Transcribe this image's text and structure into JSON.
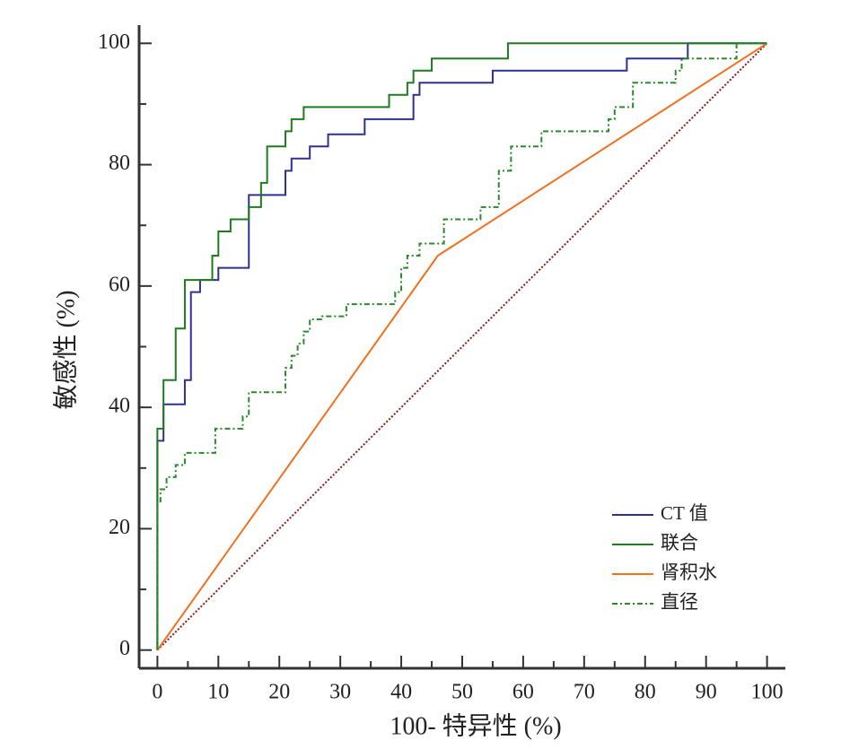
{
  "chart_data": {
    "type": "line",
    "x_label": "100- 特异性 (%)",
    "y_label": "敏感性 (%)",
    "xlim": [
      -3,
      103
    ],
    "ylim": [
      -3,
      103
    ],
    "xticks": [
      0,
      10,
      20,
      30,
      40,
      50,
      60,
      70,
      80,
      90,
      100
    ],
    "yticks": [
      0,
      20,
      40,
      60,
      80,
      100
    ],
    "xminorticks": [
      5,
      15,
      25,
      35,
      45,
      55,
      65,
      75,
      85,
      95
    ],
    "yminorticks": [
      10,
      30,
      50,
      70,
      90
    ],
    "reference_line": {
      "color": "#8b1a1a",
      "x": [
        0,
        100
      ],
      "values": [
        0,
        100
      ]
    },
    "series": [
      {
        "name": "CT 值",
        "color": "#2e3192",
        "style": "solid",
        "x": [
          0,
          0,
          1,
          1,
          4.5,
          4.5,
          5.5,
          5.5,
          7,
          7,
          10,
          10,
          15,
          15,
          21,
          21,
          22,
          22,
          25,
          25,
          28,
          28,
          34,
          34,
          42,
          42,
          43,
          43,
          55,
          55,
          77,
          77,
          87,
          87,
          100
        ],
        "values": [
          0,
          34.5,
          34.5,
          40.5,
          40.5,
          44.5,
          44.5,
          59,
          59,
          61,
          61,
          63,
          63,
          75,
          75,
          79,
          79,
          81,
          81,
          83,
          83,
          85,
          85,
          87.5,
          87.5,
          91.5,
          91.5,
          93.5,
          93.5,
          95.5,
          95.5,
          97.5,
          97.5,
          100,
          100
        ]
      },
      {
        "name": "联合",
        "color": "#1e7b1e",
        "style": "solid",
        "x": [
          0,
          0,
          1,
          1,
          3,
          3,
          4.5,
          4.5,
          9,
          9,
          10,
          10,
          12,
          12,
          15,
          15,
          17,
          17,
          18,
          18,
          21,
          21,
          22,
          22,
          24,
          24,
          38,
          38,
          41,
          41,
          42,
          42,
          45,
          45,
          57.5,
          57.5,
          100
        ],
        "values": [
          0,
          36.5,
          36.5,
          44.5,
          44.5,
          53,
          53,
          61,
          61,
          65,
          65,
          69,
          69,
          71,
          71,
          73,
          73,
          77,
          77,
          83,
          83,
          85.5,
          85.5,
          87.5,
          87.5,
          89.5,
          89.5,
          91.5,
          91.5,
          93.5,
          93.5,
          95.5,
          95.5,
          97.5,
          97.5,
          100,
          100
        ]
      },
      {
        "name": "肾积水",
        "color": "#f07020",
        "style": "solid",
        "x": [
          0,
          46,
          100
        ],
        "values": [
          0,
          65,
          100
        ]
      },
      {
        "name": "直径",
        "color": "#2a8a2a",
        "style": "dashdot",
        "x": [
          0,
          0,
          0.5,
          0.5,
          1.5,
          1.5,
          3,
          3,
          4.5,
          4.5,
          9.5,
          9.5,
          14,
          14,
          15,
          15,
          21,
          21,
          22,
          22,
          23,
          23,
          24,
          24,
          25,
          25,
          27,
          27,
          31,
          31,
          39,
          39,
          40,
          40,
          41,
          41,
          43,
          43,
          47,
          47,
          53,
          53,
          56,
          56,
          58,
          58,
          63,
          63,
          74,
          74,
          75,
          75,
          78,
          78,
          85,
          85,
          86,
          86,
          95,
          95,
          100
        ],
        "values": [
          0,
          24.5,
          24.5,
          26.5,
          26.5,
          28.5,
          28.5,
          30.5,
          30.5,
          32.5,
          32.5,
          36.5,
          36.5,
          38.5,
          38.5,
          42.5,
          42.5,
          46.5,
          46.5,
          48.5,
          48.5,
          50.5,
          50.5,
          52.5,
          52.5,
          54.5,
          54.5,
          55,
          55,
          57,
          57,
          59,
          59,
          63,
          63,
          65,
          65,
          67,
          67,
          71,
          71,
          73,
          73,
          79,
          79,
          83,
          83,
          85.5,
          85.5,
          87.5,
          87.5,
          89.5,
          89.5,
          93.5,
          93.5,
          95.5,
          95.5,
          97.5,
          97.5,
          100,
          100
        ]
      }
    ]
  }
}
